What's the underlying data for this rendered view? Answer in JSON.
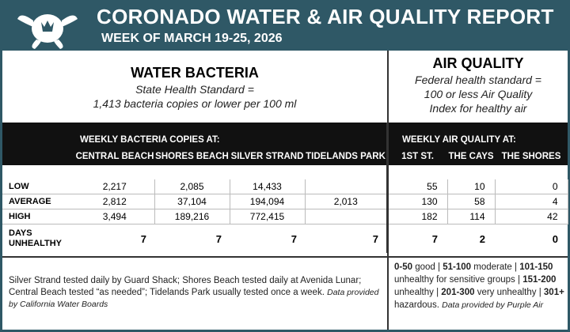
{
  "header": {
    "title": "CORONADO WATER & AIR QUALITY REPORT",
    "subtitle": "WEEK OF MARCH 19-25, 2026"
  },
  "water": {
    "title": "WATER BACTERIA",
    "standard_lines": [
      "State Health Standard  =",
      "1,413 bacteria copies or lower per 100 ml"
    ],
    "group_label": "WEEKLY BACTERIA COPIES AT:",
    "columns": [
      "CENTRAL BEACH",
      "SHORES BEACH",
      "SILVER STRAND",
      "TIDELANDS PARK"
    ]
  },
  "air": {
    "title": "AIR QUALITY",
    "standard_lines": [
      "Federal health standard =",
      "100 or less Air Quality",
      "Index for healthy air"
    ],
    "group_label": "WEEKLY AIR QUALITY AT:",
    "columns": [
      "1ST ST.",
      "THE CAYS",
      "THE SHORES"
    ]
  },
  "table": {
    "rows": [
      {
        "label": "LOW",
        "water": [
          "2,217",
          "2,085",
          "14,433",
          null
        ],
        "air": [
          "55",
          "10",
          "0"
        ]
      },
      {
        "label": "AVERAGE",
        "water": [
          "2,812",
          "37,104",
          "194,094",
          "2,013"
        ],
        "air": [
          "130",
          "58",
          "4"
        ]
      },
      {
        "label": "HIGH",
        "water": [
          "3,494",
          "189,216",
          "772,415",
          null
        ],
        "air": [
          "182",
          "114",
          "42"
        ]
      },
      {
        "label": "DAYS UNHEALTHY",
        "water": [
          "7",
          "7",
          "7",
          "7"
        ],
        "air": [
          "7",
          "2",
          "0"
        ]
      }
    ]
  },
  "notes": {
    "water": "Silver Strand tested daily by Guard Shack; Shores Beach tested daily at Avenida Lunar; Central Beach tested “as needed”; Tidelands Park usually tested once a week.",
    "water_source": "Data provided by California Water Boards",
    "air_scale": [
      {
        "range": "0-50",
        "label": "good"
      },
      {
        "range": "51-100",
        "label": "moderate"
      },
      {
        "range": "101-150",
        "label": "unhealthy for sensitive groups"
      },
      {
        "range": "151-200",
        "label": "unhealthy"
      },
      {
        "range": "201-300",
        "label": "very unhealthy"
      },
      {
        "range": "301+",
        "label": "hazardous."
      }
    ],
    "separator": "|",
    "air_source": "Data provided by Purple Air"
  }
}
